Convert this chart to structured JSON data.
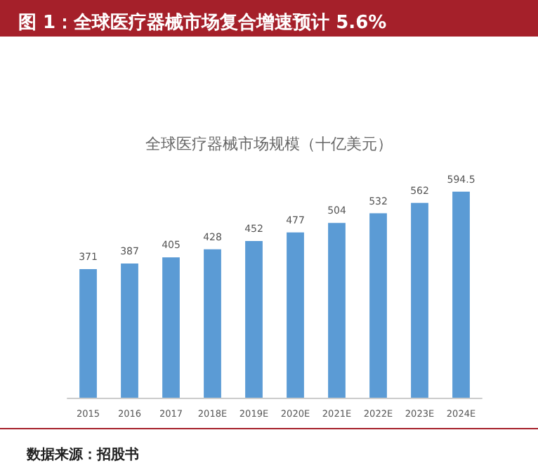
{
  "chart_data": {
    "type": "bar",
    "title": "图 1：全球医疗器械市场复合增速预计 5.6%",
    "subtitle": "全球医疗器械市场规模（十亿美元）",
    "categories": [
      "2015",
      "2016",
      "2017",
      "2018E",
      "2019E",
      "2020E",
      "2021E",
      "2022E",
      "2023E",
      "2024E"
    ],
    "values": [
      371,
      387,
      405,
      428,
      452,
      477,
      504,
      532,
      562,
      594.5
    ],
    "color": "#5b9bd5",
    "data_labels": true,
    "grid": false,
    "annotations": [
      "数据来源：招股书"
    ]
  }
}
